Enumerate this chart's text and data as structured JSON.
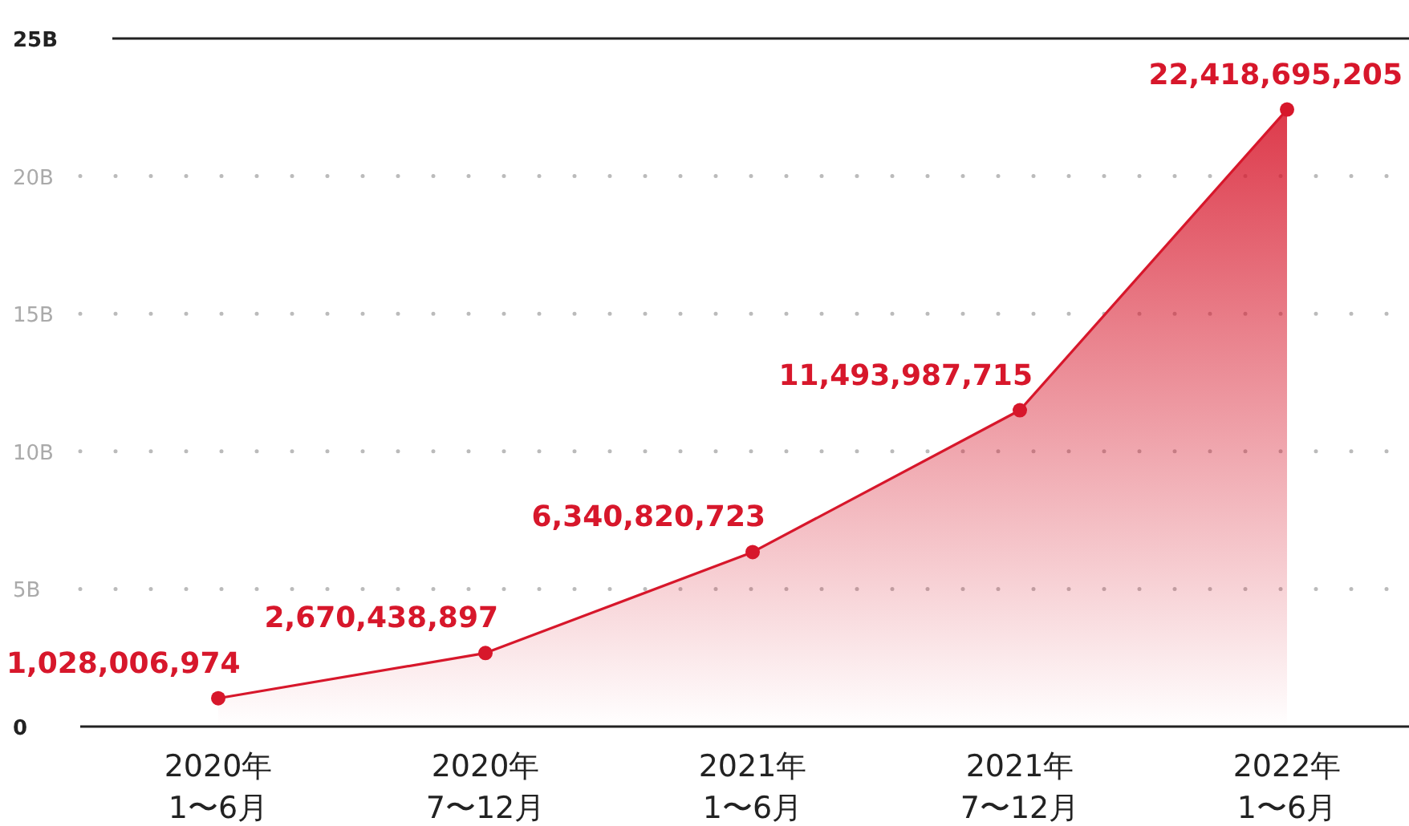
{
  "chart_data": {
    "type": "area",
    "categories": [
      "2020年\n1〜6月",
      "2020年\n7〜12月",
      "2021年\n1〜6月",
      "2021年\n7〜12月",
      "2022年\n1〜6月"
    ],
    "values": [
      1028006974,
      2670438897,
      6340820723,
      11493987715,
      22418695205
    ],
    "color": "#d7172b",
    "ylim": [
      0,
      25000000000
    ],
    "yticks": [
      {
        "value": 0,
        "label": "0"
      },
      {
        "value": 5000000000,
        "label": "5B"
      },
      {
        "value": 10000000000,
        "label": "10B"
      },
      {
        "value": 15000000000,
        "label": "15B"
      },
      {
        "value": 20000000000,
        "label": "20B"
      },
      {
        "value": 25000000000,
        "label": "25B"
      }
    ],
    "value_labels": [
      "1,028,006,974",
      "2,670,438,897",
      "6,340,820,723",
      "11,493,987,715",
      "22,418,695,205"
    ],
    "grid": "y",
    "marker": "circle"
  }
}
